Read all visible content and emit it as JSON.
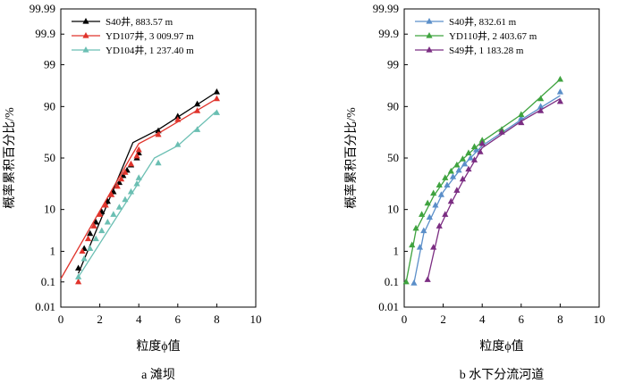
{
  "chart_data": [
    {
      "type": "line",
      "caption": "a 滩坝",
      "xlabel": "粒度ϕ值",
      "ylabel": "概率累积百分比/%",
      "xlim": [
        0,
        10
      ],
      "x_ticks": [
        "0",
        "2",
        "4",
        "6",
        "8",
        "10"
      ],
      "y_ticks": [
        "0.01",
        "0.1",
        "1",
        "10",
        "50",
        "90",
        "99",
        "99.9",
        "99.99"
      ],
      "y_tick_values": [
        0.01,
        0.1,
        1,
        10,
        50,
        90,
        99,
        99.9,
        99.99
      ],
      "series": [
        {
          "name": "S40井, 883.57 m",
          "color": "#000000",
          "points": [
            [
              0.9,
              0.3
            ],
            [
              1.2,
              1.2
            ],
            [
              1.5,
              3
            ],
            [
              1.8,
              5.5
            ],
            [
              2.1,
              9
            ],
            [
              2.4,
              14
            ],
            [
              2.7,
              20
            ],
            [
              3.0,
              27
            ],
            [
              3.2,
              33
            ],
            [
              3.4,
              38
            ],
            [
              3.6,
              43
            ],
            [
              3.9,
              50
            ],
            [
              4.0,
              55
            ],
            [
              5.0,
              75
            ],
            [
              6.0,
              85
            ],
            [
              7.0,
              91
            ],
            [
              8.0,
              95
            ]
          ],
          "line": [
            [
              0.9,
              0.2
            ],
            [
              3.7,
              65
            ],
            [
              5.0,
              76
            ],
            [
              8.0,
              95
            ]
          ]
        },
        {
          "name": "YD107井, 3 009.97 m",
          "color": "#e0342c",
          "points": [
            [
              0.9,
              0.1
            ],
            [
              1.1,
              1.0
            ],
            [
              1.4,
              2.2
            ],
            [
              1.7,
              4.5
            ],
            [
              2.0,
              8
            ],
            [
              2.3,
              12
            ],
            [
              2.6,
              18
            ],
            [
              2.9,
              24
            ],
            [
              3.1,
              30
            ],
            [
              3.3,
              36
            ],
            [
              3.6,
              44
            ],
            [
              3.9,
              52
            ],
            [
              4.0,
              58
            ],
            [
              5.0,
              72
            ],
            [
              6.0,
              83
            ],
            [
              7.0,
              88
            ],
            [
              8.0,
              93
            ]
          ],
          "line": [
            [
              0.0,
              0.13
            ],
            [
              3.5,
              48
            ],
            [
              4.0,
              64
            ],
            [
              5.0,
              73
            ],
            [
              8.0,
              93
            ]
          ]
        },
        {
          "name": "YD104井, 1 237.40 m",
          "color": "#6bbfb3",
          "points": [
            [
              0.9,
              0.15
            ],
            [
              1.2,
              0.6
            ],
            [
              1.5,
              1.2
            ],
            [
              1.8,
              2.2
            ],
            [
              2.1,
              3.5
            ],
            [
              2.4,
              5.5
            ],
            [
              2.7,
              8
            ],
            [
              3.0,
              11
            ],
            [
              3.3,
              15
            ],
            [
              3.6,
              20
            ],
            [
              3.9,
              26
            ],
            [
              4.0,
              31
            ],
            [
              5.0,
              45
            ],
            [
              6.0,
              63
            ],
            [
              7.0,
              76
            ],
            [
              8.0,
              87
            ]
          ],
          "line": [
            [
              0.9,
              0.15
            ],
            [
              4.8,
              50
            ],
            [
              6.0,
              62
            ],
            [
              8.0,
              88
            ]
          ]
        }
      ]
    },
    {
      "type": "line",
      "caption": "b 水下分流河道",
      "xlabel": "粒度ϕ值",
      "ylabel": "概率累积百分比/%",
      "xlim": [
        0,
        10
      ],
      "x_ticks": [
        "0",
        "2",
        "4",
        "6",
        "8",
        "10"
      ],
      "y_ticks": [
        "0.01",
        "0.1",
        "1",
        "10",
        "50",
        "90",
        "99",
        "99.9",
        "99.99"
      ],
      "y_tick_values": [
        0.01,
        0.1,
        1,
        10,
        50,
        90,
        99,
        99.9,
        99.99
      ],
      "series": [
        {
          "name": "S40井, 832.61 m",
          "color": "#5b8fc9",
          "points": [
            [
              0.5,
              0.09
            ],
            [
              0.8,
              1.3
            ],
            [
              1.0,
              3.5
            ],
            [
              1.3,
              7
            ],
            [
              1.6,
              12
            ],
            [
              1.9,
              18
            ],
            [
              2.2,
              25
            ],
            [
              2.5,
              32
            ],
            [
              2.8,
              38
            ],
            [
              3.1,
              44
            ],
            [
              3.4,
              50
            ],
            [
              3.7,
              58
            ],
            [
              4.0,
              65
            ],
            [
              5.0,
              74
            ],
            [
              6.0,
              84
            ],
            [
              7.0,
              90
            ],
            [
              8.0,
              95
            ]
          ],
          "line": [
            [
              0.5,
              0.09
            ],
            [
              1.0,
              3
            ],
            [
              2.0,
              20
            ],
            [
              3.0,
              42
            ],
            [
              4.0,
              62
            ],
            [
              6.0,
              83
            ],
            [
              8.0,
              94
            ]
          ]
        },
        {
          "name": "YD110井, 2 403.67 m",
          "color": "#3fa33f",
          "points": [
            [
              0.1,
              0.1
            ],
            [
              0.4,
              1.5
            ],
            [
              0.6,
              4
            ],
            [
              0.9,
              8
            ],
            [
              1.2,
              13
            ],
            [
              1.5,
              19
            ],
            [
              1.8,
              25
            ],
            [
              2.1,
              31
            ],
            [
              2.4,
              37
            ],
            [
              2.7,
              43
            ],
            [
              3.0,
              49
            ],
            [
              3.3,
              55
            ],
            [
              3.6,
              61
            ],
            [
              4.0,
              67
            ],
            [
              5.0,
              76
            ],
            [
              6.0,
              86
            ],
            [
              7.0,
              93
            ],
            [
              8.0,
              97.5
            ]
          ],
          "line": [
            [
              0.1,
              0.1
            ],
            [
              0.6,
              3.5
            ],
            [
              1.5,
              17
            ],
            [
              2.5,
              40
            ],
            [
              4.0,
              66
            ],
            [
              6.0,
              86
            ],
            [
              8.0,
              97.5
            ]
          ]
        },
        {
          "name": "S49井, 1 183.28 m",
          "color": "#7b2d82",
          "points": [
            [
              1.2,
              0.12
            ],
            [
              1.5,
              1.3
            ],
            [
              1.8,
              4.5
            ],
            [
              2.1,
              8
            ],
            [
              2.4,
              14
            ],
            [
              2.7,
              21
            ],
            [
              3.0,
              30
            ],
            [
              3.3,
              39
            ],
            [
              3.6,
              48
            ],
            [
              3.9,
              56
            ],
            [
              4.0,
              64
            ],
            [
              5.0,
              74
            ],
            [
              6.0,
              81
            ],
            [
              7.0,
              88
            ],
            [
              8.0,
              92
            ]
          ],
          "line": [
            [
              1.2,
              0.12
            ],
            [
              1.8,
              4
            ],
            [
              2.5,
              15
            ],
            [
              3.0,
              28
            ],
            [
              4.0,
              60
            ],
            [
              6.0,
              82
            ],
            [
              8.0,
              93
            ]
          ]
        }
      ]
    }
  ]
}
